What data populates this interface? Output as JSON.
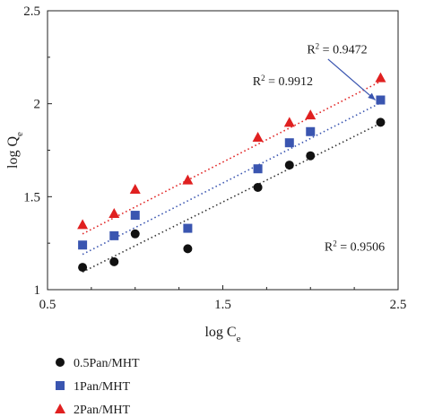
{
  "chart_data": {
    "type": "scatter",
    "xlabel": "log C",
    "xlabel_sub": "e",
    "ylabel": "log Q",
    "ylabel_sub": "e",
    "xlim": [
      0.5,
      2.5
    ],
    "ylim": [
      1,
      2.5
    ],
    "xticks": [
      0.5,
      1.5,
      2.5
    ],
    "yticks": [
      1,
      1.5,
      2,
      2.5
    ],
    "xtick_labels": [
      "0.5",
      "1.5",
      "2.5"
    ],
    "ytick_labels": [
      "1",
      "1.5",
      "2",
      "2.5"
    ],
    "grid": false,
    "legend_placement": "bottom-left, below plot",
    "series": [
      {
        "name": "0.5Pan/MHT",
        "marker": "circle",
        "color": "#111111",
        "line_color": "#333333",
        "x": [
          0.7,
          0.88,
          1.0,
          1.3,
          1.7,
          1.88,
          2.0,
          2.4
        ],
        "y": [
          1.12,
          1.15,
          1.3,
          1.22,
          1.55,
          1.67,
          1.72,
          1.9
        ],
        "fit": [
          [
            0.7,
            1.095
          ],
          [
            2.4,
            1.895
          ]
        ]
      },
      {
        "name": "1Pan/MHT",
        "marker": "square",
        "color": "#3a55b0",
        "line_color": "#3a55b0",
        "x": [
          0.7,
          0.88,
          1.0,
          1.3,
          1.7,
          1.88,
          2.0,
          2.4
        ],
        "y": [
          1.24,
          1.29,
          1.4,
          1.33,
          1.65,
          1.79,
          1.85,
          2.02
        ],
        "fit": [
          [
            0.7,
            1.19
          ],
          [
            2.4,
            2.005
          ]
        ]
      },
      {
        "name": "2Pan/MHT",
        "marker": "triangle",
        "color": "#e02020",
        "line_color": "#e02020",
        "x": [
          0.7,
          0.88,
          1.0,
          1.3,
          1.7,
          1.88,
          2.0,
          2.4
        ],
        "y": [
          1.35,
          1.41,
          1.54,
          1.59,
          1.82,
          1.9,
          1.94,
          2.14
        ],
        "fit": [
          [
            0.7,
            1.3
          ],
          [
            2.4,
            2.12
          ]
        ]
      }
    ],
    "annotations": [
      {
        "id": "r2-1pan",
        "prefix": "R",
        "sup": "2",
        "suffix": " = 0.9472",
        "x": 1.98,
        "y": 2.27
      },
      {
        "id": "r2-2pan",
        "prefix": "R",
        "sup": "2",
        "suffix": " = 0.9912",
        "x": 1.67,
        "y": 2.1
      },
      {
        "id": "r2-05pan",
        "prefix": "R",
        "sup": "2",
        "suffix": " = 0.9506",
        "x": 2.08,
        "y": 1.21
      }
    ],
    "arrow": {
      "from": [
        2.1,
        2.24
      ],
      "to": [
        2.37,
        2.02
      ],
      "color": "#3a55b0"
    }
  }
}
